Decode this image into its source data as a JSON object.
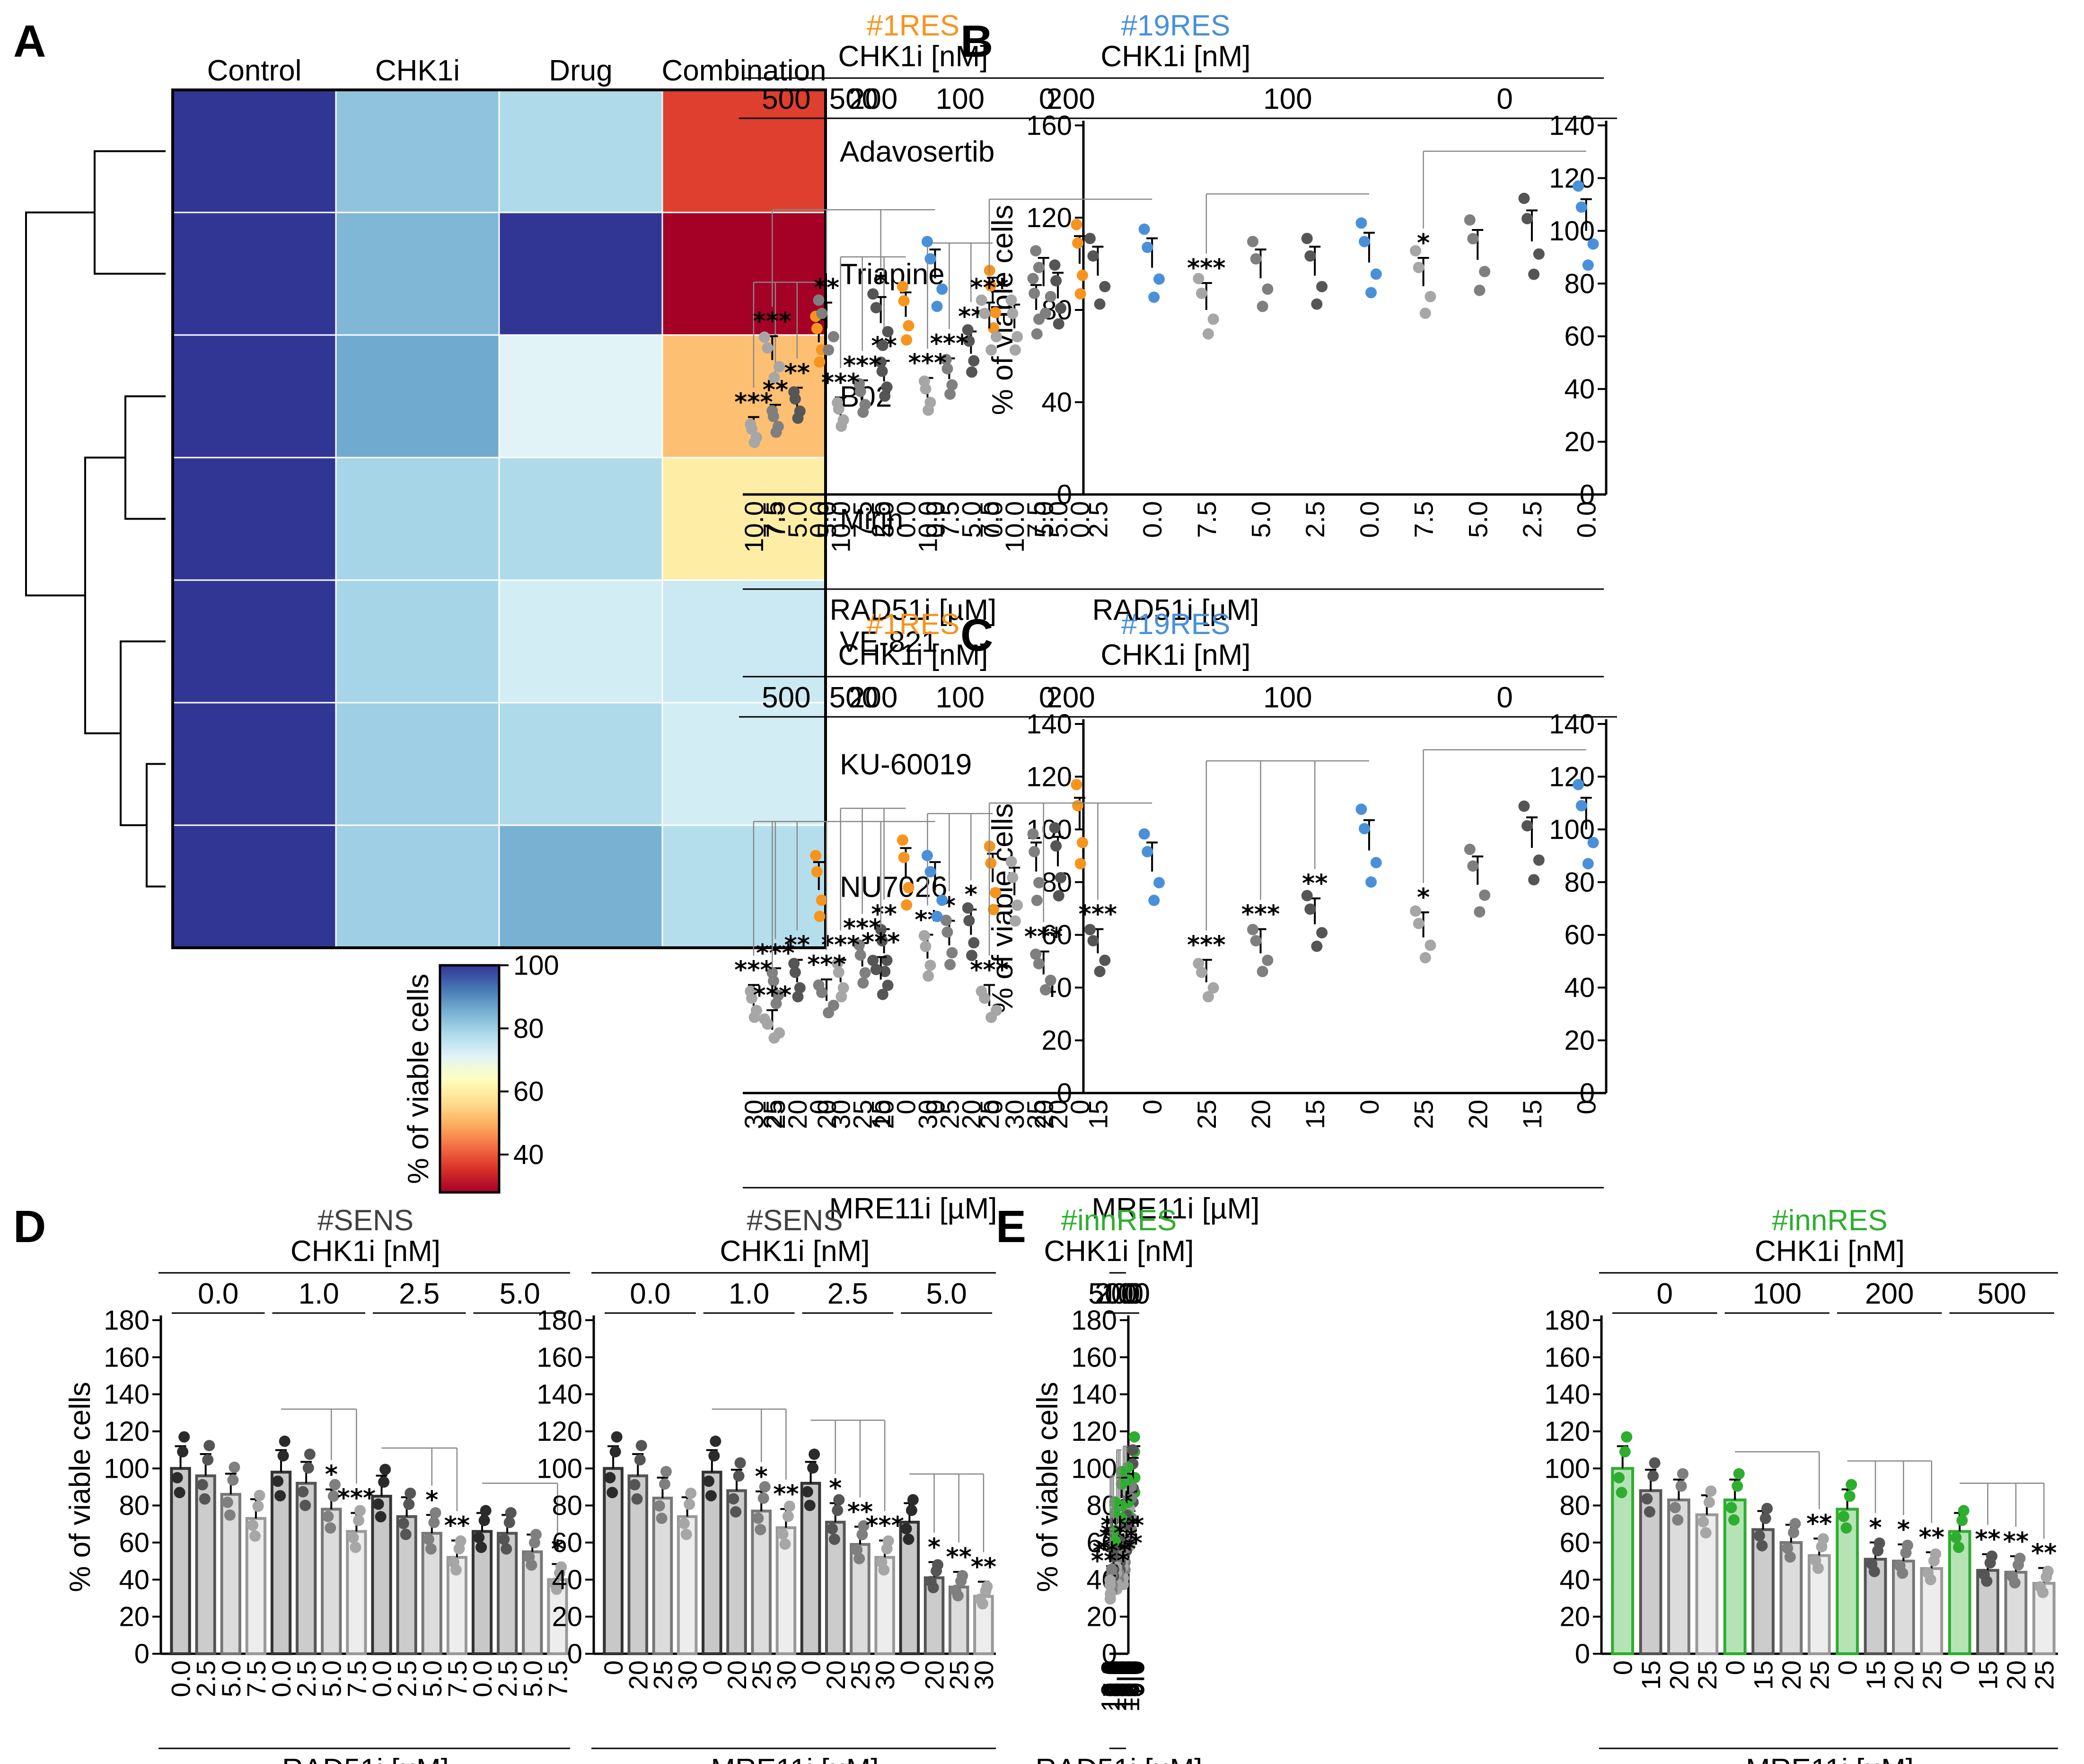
{
  "colors": {
    "res1": "#f7941d",
    "res19": "#4a90d9",
    "sens": "#404040",
    "inn": "#2eae2e",
    "heat_high": "#313695",
    "heat_mid": "#ffffbf",
    "heat_low": "#a50026"
  },
  "chart_data": [
    {
      "panel": "A",
      "type": "heatmap",
      "columns": [
        "Control",
        "CHK1i",
        "Drug",
        "Combination"
      ],
      "rows": [
        "Adavosertib",
        "Triapine",
        "B02",
        "Mirin",
        "VE-821",
        "KU-60019",
        "NU7026"
      ],
      "values": [
        [
          100,
          82,
          78,
          37
        ],
        [
          100,
          84,
          100,
          28
        ],
        [
          100,
          86,
          71,
          52
        ],
        [
          100,
          79,
          78,
          60
        ],
        [
          100,
          79,
          73,
          74
        ],
        [
          100,
          80,
          78,
          73
        ],
        [
          100,
          80,
          85,
          77
        ]
      ],
      "colorbar": {
        "label": "% of viable cells",
        "ticks": [
          "100",
          "80",
          "60",
          "40"
        ],
        "range": [
          28,
          100
        ]
      },
      "dendrogram": "hierarchical clustering of rows"
    },
    {
      "panel": "B",
      "type": "bar",
      "cell_line": "#1RES",
      "title_color": "res1",
      "subtitle": "CHK1i [nM]",
      "groups": [
        "0",
        "100",
        "200",
        "500"
      ],
      "categories": [
        "0.0",
        "5.0",
        "7.5",
        "10.0"
      ],
      "values": [
        [
          100,
          85,
          80,
          72
        ],
        [
          83,
          61,
          50,
          42
        ],
        [
          77,
          49,
          41,
          34
        ],
        [
          66,
          38,
          31,
          26
        ]
      ],
      "stars": [
        [
          "",
          "",
          "",
          ""
        ],
        [
          "",
          "**",
          "***",
          "***"
        ],
        [
          "",
          "**",
          "***",
          "***"
        ],
        [
          "",
          "**",
          "**",
          "***"
        ]
      ],
      "ylabel": "% of viable cells",
      "xlabel": "RAD51i [µM]",
      "ylim": [
        0,
        160
      ],
      "yticks": [
        0,
        40,
        80,
        120,
        160
      ]
    },
    {
      "panel": "B",
      "type": "bar",
      "cell_line": "#19RES",
      "title_color": "res19",
      "subtitle": "CHK1i [nM]",
      "groups": [
        "0",
        "100",
        "200",
        "500"
      ],
      "categories": [
        "0.0",
        "2.5",
        "5.0",
        "7.5"
      ],
      "values": [
        [
          100,
          96,
          89,
          79
        ],
        [
          88,
          83,
          82,
          70
        ],
        [
          86,
          83,
          79,
          63
        ],
        [
          82,
          65,
          63,
          51
        ]
      ],
      "stars": [
        [
          "",
          "",
          "",
          "*"
        ],
        [
          "",
          "",
          "",
          "***"
        ],
        [
          "",
          "",
          "",
          "***"
        ],
        [
          "",
          "*",
          "**",
          "***"
        ]
      ],
      "ylabel": "",
      "xlabel": "RAD51i [µM]",
      "ylim": [
        0,
        140
      ],
      "yticks": [
        0,
        20,
        40,
        60,
        80,
        100,
        120,
        140
      ]
    },
    {
      "panel": "C",
      "type": "bar",
      "cell_line": "#1RES",
      "title_color": "res1",
      "subtitle": "CHK1i [nM]",
      "groups": [
        "0",
        "100",
        "200",
        "500"
      ],
      "categories": [
        "0",
        "20",
        "25",
        "30"
      ],
      "values": [
        [
          100,
          86,
          84,
          75
        ],
        [
          80,
          60,
          56,
          51
        ],
        [
          82,
          53,
          48,
          42
        ],
        [
          77,
          42,
          39,
          33
        ]
      ],
      "stars": [
        [
          "",
          "",
          "",
          ""
        ],
        [
          "",
          "*",
          "*",
          "**"
        ],
        [
          "",
          "**",
          "***",
          "***"
        ],
        [
          "",
          "**",
          "***",
          "***"
        ]
      ],
      "ylabel": "% of viable cells",
      "xlabel": "MRE11i [µM]",
      "ylim": [
        0,
        140
      ],
      "yticks": [
        0,
        20,
        40,
        60,
        80,
        100,
        120,
        140
      ]
    },
    {
      "panel": "C",
      "type": "bar",
      "cell_line": "#19RES",
      "title_color": "res19",
      "subtitle": "CHK1i [nM]",
      "groups": [
        "0",
        "100",
        "200",
        "500"
      ],
      "categories": [
        "0",
        "15",
        "20",
        "25"
      ],
      "values": [
        [
          100,
          93,
          79,
          59
        ],
        [
          92,
          64,
          53,
          42
        ],
        [
          84,
          53,
          45,
          33
        ],
        [
          77,
          43,
          35,
          24
        ]
      ],
      "stars": [
        [
          "",
          "",
          "",
          "*"
        ],
        [
          "",
          "**",
          "***",
          "***"
        ],
        [
          "",
          "***",
          "***",
          "***"
        ],
        [
          "",
          "***",
          "***",
          "***"
        ]
      ],
      "ylabel": "",
      "xlabel": "MRE11i [µM]",
      "ylim": [
        0,
        140
      ],
      "yticks": [
        0,
        20,
        40,
        60,
        80,
        100,
        120,
        140
      ]
    },
    {
      "panel": "D",
      "type": "bar",
      "cell_line": "#SENS",
      "title_color": "sens",
      "subtitle": "CHK1i [nM]",
      "groups": [
        "0.0",
        "1.0",
        "2.5",
        "5.0"
      ],
      "categories": [
        "0.0",
        "2.5",
        "5.0",
        "7.5"
      ],
      "values": [
        [
          100,
          96,
          86,
          73
        ],
        [
          98,
          92,
          78,
          66
        ],
        [
          85,
          74,
          65,
          52
        ],
        [
          66,
          65,
          55,
          40
        ]
      ],
      "stars": [
        [
          "",
          "",
          "",
          ""
        ],
        [
          "",
          "",
          "*",
          "***"
        ],
        [
          "",
          "",
          "*",
          "**"
        ],
        [
          "",
          "",
          "",
          "*"
        ]
      ],
      "ylabel": "% of viable cells",
      "xlabel": "RAD51i [µM]",
      "ylim": [
        0,
        180
      ],
      "yticks": [
        0,
        20,
        40,
        60,
        80,
        100,
        120,
        140,
        160,
        180
      ]
    },
    {
      "panel": "D",
      "type": "bar",
      "cell_line": "#SENS",
      "title_color": "sens",
      "subtitle": "CHK1i [nM]",
      "groups": [
        "0.0",
        "1.0",
        "2.5",
        "5.0"
      ],
      "categories": [
        "0",
        "20",
        "25",
        "30"
      ],
      "values": [
        [
          100,
          96,
          84,
          74
        ],
        [
          98,
          88,
          77,
          68
        ],
        [
          92,
          71,
          59,
          52
        ],
        [
          71,
          41,
          36,
          31
        ]
      ],
      "stars": [
        [
          "",
          "",
          "",
          ""
        ],
        [
          "",
          "",
          "*",
          "**"
        ],
        [
          "",
          "*",
          "**",
          "***"
        ],
        [
          "",
          "*",
          "**",
          "**"
        ]
      ],
      "ylabel": "",
      "xlabel": "MRE11i [µM]",
      "ylim": [
        0,
        180
      ],
      "yticks": [
        0,
        20,
        40,
        60,
        80,
        100,
        120,
        140,
        160,
        180
      ]
    },
    {
      "panel": "E",
      "type": "bar",
      "cell_line": "#innRES",
      "title_color": "inn",
      "subtitle": "CHK1i [nM]",
      "groups": [
        "0",
        "100",
        "200",
        "500"
      ],
      "categories": [
        "0.0",
        "5.0",
        "7.5",
        "10.0"
      ],
      "values": [
        [
          100,
          94,
          77,
          67
        ],
        [
          86,
          64,
          52,
          43
        ],
        [
          84,
          52,
          46,
          40
        ],
        [
          70,
          48,
          39,
          34
        ]
      ],
      "stars": [
        [
          "",
          "",
          "",
          ""
        ],
        [
          "",
          "*",
          "***",
          "***"
        ],
        [
          "",
          "***",
          "***",
          "***"
        ],
        [
          "",
          "**",
          "***",
          "***"
        ]
      ],
      "ylabel": "% of viable cells",
      "xlabel": "RAD51i [µM]",
      "ylim": [
        0,
        180
      ],
      "yticks": [
        0,
        20,
        40,
        60,
        80,
        100,
        120,
        140,
        160,
        180
      ]
    },
    {
      "panel": "E",
      "type": "bar",
      "cell_line": "#innRES",
      "title_color": "inn",
      "subtitle": "CHK1i [nM]",
      "groups": [
        "0",
        "100",
        "200",
        "500"
      ],
      "categories": [
        "0",
        "15",
        "20",
        "25"
      ],
      "values": [
        [
          100,
          88,
          83,
          75
        ],
        [
          83,
          67,
          60,
          53
        ],
        [
          78,
          51,
          50,
          46
        ],
        [
          66,
          45,
          44,
          38
        ]
      ],
      "stars": [
        [
          "",
          "",
          "",
          ""
        ],
        [
          "",
          "",
          "",
          "**"
        ],
        [
          "",
          "*",
          "*",
          "**"
        ],
        [
          "",
          "**",
          "**",
          "**"
        ]
      ],
      "ylabel": "",
      "xlabel": "MRE11i [µM]",
      "ylim": [
        0,
        180
      ],
      "yticks": [
        0,
        20,
        40,
        60,
        80,
        100,
        120,
        140,
        160,
        180
      ]
    }
  ],
  "panel_labels": [
    "A",
    "B",
    "C",
    "D",
    "E"
  ]
}
